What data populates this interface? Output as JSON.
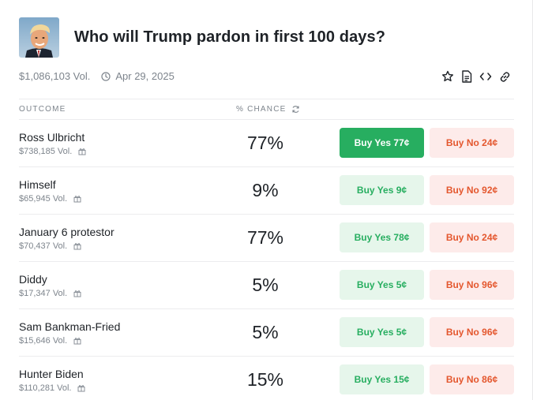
{
  "market": {
    "title": "Who will Trump pardon in first 100 days?",
    "volume": "$1,086,103 Vol.",
    "end_date": "Apr 29, 2025"
  },
  "table": {
    "col_outcome": "OUTCOME",
    "col_chance": "% CHANCE"
  },
  "outcomes": [
    {
      "name": "Ross Ulbricht",
      "vol": "$738,185 Vol.",
      "chance": "77%",
      "yes": "Buy Yes 77¢",
      "no": "Buy No 24¢",
      "selected": true
    },
    {
      "name": "Himself",
      "vol": "$65,945 Vol.",
      "chance": "9%",
      "yes": "Buy Yes 9¢",
      "no": "Buy No 92¢",
      "selected": false
    },
    {
      "name": "January 6 protestor",
      "vol": "$70,437 Vol.",
      "chance": "77%",
      "yes": "Buy Yes 78¢",
      "no": "Buy No 24¢",
      "selected": false
    },
    {
      "name": "Diddy",
      "vol": "$17,347 Vol.",
      "chance": "5%",
      "yes": "Buy Yes 5¢",
      "no": "Buy No 96¢",
      "selected": false
    },
    {
      "name": "Sam Bankman-Fried",
      "vol": "$15,646 Vol.",
      "chance": "5%",
      "yes": "Buy Yes 5¢",
      "no": "Buy No 96¢",
      "selected": false
    },
    {
      "name": "Hunter Biden",
      "vol": "$110,281 Vol.",
      "chance": "15%",
      "yes": "Buy Yes 15¢",
      "no": "Buy No 86¢",
      "selected": false
    }
  ],
  "colors": {
    "yes_accent": "#27ae60",
    "yes_bg": "#e6f6eb",
    "no_accent": "#e4572e",
    "no_bg": "#fdebea"
  },
  "icons": [
    "clock-icon",
    "star-icon",
    "document-icon",
    "embed-code-icon",
    "link-icon",
    "refresh-icon",
    "gift-icon"
  ]
}
